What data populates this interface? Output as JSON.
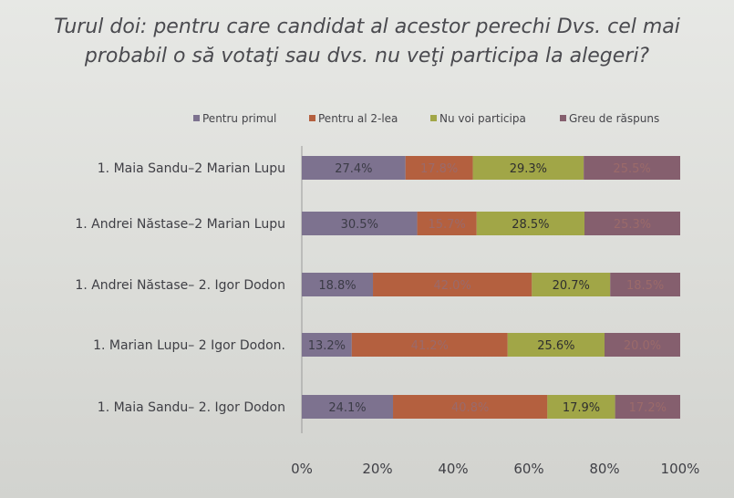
{
  "title_lines": [
    "Turul doi: pentru care candidat al acestor perechi Dvs. cel mai",
    "probabil o să votaţi sau dvs. nu veţi participa la alegeri?"
  ],
  "chart_data": {
    "type": "bar",
    "orientation": "horizontal",
    "stacked": "percent",
    "categories": [
      "1. Maia Sandu–2 Marian Lupu",
      "1. Andrei Năstase–2 Marian Lupu",
      "1. Andrei Năstase– 2. Igor Dodon",
      "1. Marian Lupu– 2 Igor Dodon.",
      "1. Maia Sandu– 2. Igor Dodon"
    ],
    "series": [
      {
        "name": "Pentru primul",
        "color": "#7d728f",
        "values": [
          27.4,
          30.5,
          18.8,
          13.2,
          24.1
        ]
      },
      {
        "name": "Pentru al 2-lea",
        "color": "#b4603f",
        "values": [
          17.8,
          15.7,
          42.0,
          41.2,
          40.8
        ]
      },
      {
        "name": "Nu voi participa",
        "color": "#a1a647",
        "values": [
          29.3,
          28.5,
          20.7,
          25.6,
          17.9
        ]
      },
      {
        "name": "Greu de răspuns",
        "color": "#855f6e",
        "values": [
          25.5,
          25.3,
          18.5,
          20.0,
          17.2
        ]
      }
    ],
    "data_labels": [
      [
        "27.4%",
        "17.8%",
        "29.3%",
        "25.5%"
      ],
      [
        "30.5%",
        "15.7%",
        "28.5%",
        "25.3%"
      ],
      [
        "18.8%",
        "42.0%",
        "20.7%",
        "18.5%"
      ],
      [
        "13.2%",
        "41.2%",
        "25.6%",
        "20.0%"
      ],
      [
        "24.1%",
        "40.8%",
        "17.9%",
        "17.2%"
      ]
    ],
    "xlim": [
      0,
      100
    ],
    "x_ticks": [
      "0%",
      "20%",
      "40%",
      "60%",
      "80%",
      "100%"
    ],
    "legend_position": "top",
    "grid": false
  }
}
